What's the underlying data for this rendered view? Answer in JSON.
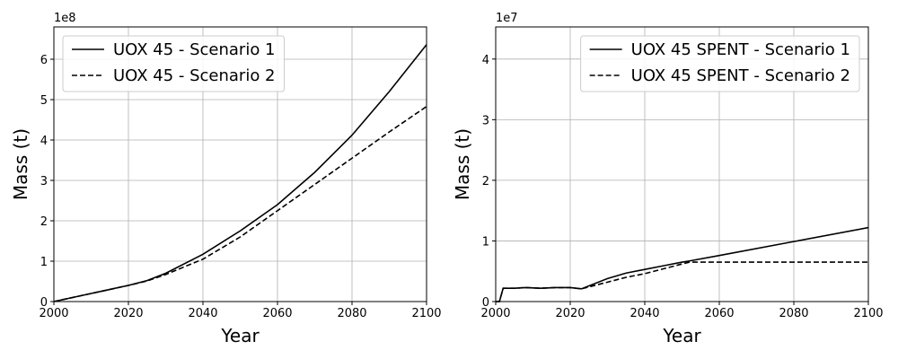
{
  "chart_data": [
    {
      "type": "line",
      "xlabel": "Year",
      "ylabel": "Mass (t)",
      "offset_text": "1e8",
      "x": [
        2000,
        2010,
        2020,
        2025,
        2030,
        2040,
        2050,
        2060,
        2070,
        2080,
        2090,
        2100
      ],
      "series": [
        {
          "name": "UOX 45 - Scenario 1",
          "color": "#000000",
          "linestyle": "solid",
          "values": [
            0,
            0.2,
            0.4,
            0.52,
            0.7,
            1.17,
            1.75,
            2.4,
            3.2,
            4.12,
            5.2,
            6.36
          ]
        },
        {
          "name": "UOX 45 - Scenario 2",
          "color": "#000000",
          "linestyle": "dashed",
          "values": [
            0,
            0.2,
            0.4,
            0.51,
            0.67,
            1.05,
            1.6,
            2.25,
            2.9,
            3.55,
            4.2,
            4.83
          ]
        }
      ],
      "xlim": [
        2000,
        2100
      ],
      "xticks": [
        2000,
        2020,
        2040,
        2060,
        2080,
        2100
      ],
      "ylim": [
        0,
        6.8
      ],
      "yticks": [
        0,
        1,
        2,
        3,
        4,
        5,
        6
      ],
      "grid": true,
      "legend": "upper left"
    },
    {
      "type": "line",
      "xlabel": "Year",
      "ylabel": "Mass (t)",
      "offset_text": "1e7",
      "x": [
        2000,
        2001,
        2002,
        2005,
        2008,
        2012,
        2016,
        2020,
        2023,
        2030,
        2035,
        2040,
        2045,
        2050,
        2052,
        2060,
        2080,
        2100
      ],
      "series": [
        {
          "name": "UOX 45 SPENT - Scenario 1",
          "color": "#000000",
          "linestyle": "solid",
          "values": [
            0,
            0,
            0.22,
            0.22,
            0.23,
            0.22,
            0.23,
            0.23,
            0.21,
            0.38,
            0.47,
            0.53,
            0.59,
            0.65,
            0.67,
            0.76,
            0.99,
            1.22
          ]
        },
        {
          "name": "UOX 45 SPENT - Scenario 2",
          "color": "#000000",
          "linestyle": "dashed",
          "values": [
            0,
            0,
            0.22,
            0.22,
            0.23,
            0.22,
            0.23,
            0.23,
            0.21,
            0.32,
            0.4,
            0.46,
            0.54,
            0.62,
            0.65,
            0.65,
            0.65,
            0.65
          ]
        }
      ],
      "xlim": [
        2000,
        2100
      ],
      "xticks": [
        2000,
        2020,
        2040,
        2060,
        2080,
        2100
      ],
      "ylim": [
        0,
        4.53
      ],
      "yticks": [
        0,
        1,
        2,
        3,
        4
      ],
      "grid": true,
      "legend": "upper right"
    }
  ]
}
